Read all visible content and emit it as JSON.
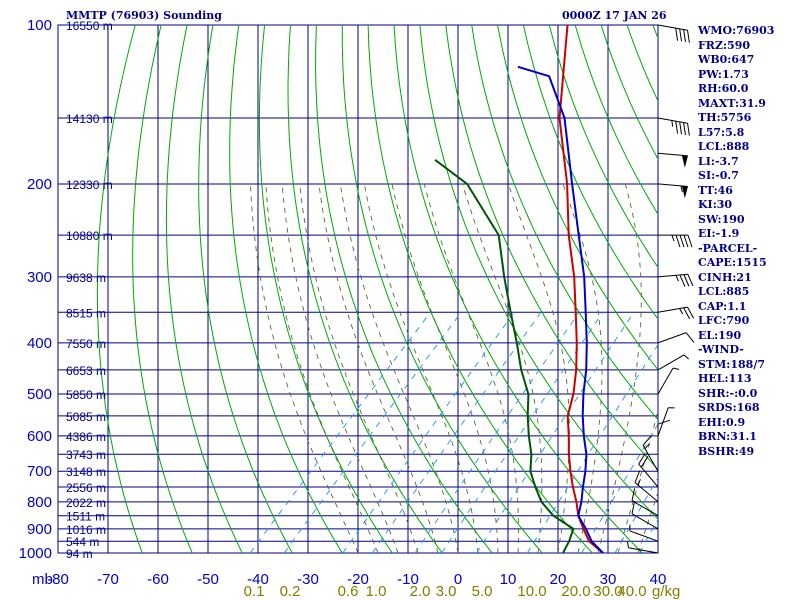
{
  "header": {
    "title": "MMTP (76903) Sounding",
    "datetime": "0000Z 17 JAN 26"
  },
  "index_panel": [
    "WMO:76903",
    "FRZ:590",
    "WB0:647",
    "PW:1.73",
    "RH:60.0",
    "MAXT:31.9",
    "TH:5756",
    "L57:5.8",
    "LCL:888",
    "LI:-3.7",
    "SI:-0.7",
    "TT:46",
    "KI:30",
    "SW:190",
    "EI:-1.9",
    "-PARCEL-",
    "CAPE:1515",
    "CINH:21",
    "LCL:885",
    "CAP:1.1",
    "LFC:790",
    "EL:190",
    "-WIND-",
    "STM:188/7",
    "HEL:113",
    "SHR:-:0.0",
    "SRDS:168",
    "EHI:0.9",
    "BRN:31.1",
    "BSHR:49"
  ],
  "colors": {
    "grid": "#00008b",
    "axis_text": "#0000cd",
    "dry_adiabat": "#00aa00",
    "moist_adiabat": "#556b2f",
    "mixing_ratio": "#1e90ff",
    "temperature": "#cc0000",
    "dewpoint": "#005500",
    "parcel": "#0000cc",
    "mix_label": "#808000"
  },
  "chart_data": {
    "type": "skew-t log-p sounding",
    "title": "MMTP (76903) Sounding",
    "pressure_range_mb": [
      1000,
      100
    ],
    "temperature_range_c": [
      -80,
      40
    ],
    "pressure_unit_label": "mb",
    "mixing_ratio_unit_label": "g/kg",
    "pressure_levels": [
      100,
      200,
      300,
      400,
      500,
      600,
      700,
      800,
      900,
      1000
    ],
    "temperature_ticks": [
      -80,
      -70,
      -60,
      -50,
      -40,
      -30,
      -20,
      -10,
      0,
      10,
      20,
      30,
      40
    ],
    "height_labels": [
      {
        "p": 100,
        "label": "16550 m"
      },
      {
        "p": 150,
        "label": "14130 m"
      },
      {
        "p": 200,
        "label": "12330 m"
      },
      {
        "p": 250,
        "label": "10880 m"
      },
      {
        "p": 300,
        "label": "9638 m"
      },
      {
        "p": 350,
        "label": "8515 m"
      },
      {
        "p": 400,
        "label": "7550 m"
      },
      {
        "p": 450,
        "label": "6653 m"
      },
      {
        "p": 500,
        "label": "5850 m"
      },
      {
        "p": 550,
        "label": "5085 m"
      },
      {
        "p": 600,
        "label": "4386 m"
      },
      {
        "p": 650,
        "label": "3743 m"
      },
      {
        "p": 700,
        "label": "3148 m"
      },
      {
        "p": 750,
        "label": "2556 m"
      },
      {
        "p": 800,
        "label": "2022 m"
      },
      {
        "p": 850,
        "label": "1511 m"
      },
      {
        "p": 900,
        "label": "1016 m"
      },
      {
        "p": 950,
        "label": "544 m"
      },
      {
        "p": 1000,
        "label": "94 m"
      }
    ],
    "mixing_ratio_labels": [
      "0.1",
      "0.2",
      "0.6",
      "1.0",
      "2.0",
      "3.0",
      "5.0",
      "10.0",
      "20.0",
      "30.0",
      "40.0"
    ],
    "mixing_ratio_values": [
      0.1,
      0.2,
      0.6,
      1.0,
      2.0,
      3.0,
      5.0,
      10.0,
      20.0,
      30.0,
      40.0
    ],
    "series": [
      {
        "name": "temperature",
        "points": [
          [
            1000,
            29
          ],
          [
            950,
            24
          ],
          [
            900,
            20.5
          ],
          [
            850,
            17
          ],
          [
            800,
            14
          ],
          [
            750,
            10.5
          ],
          [
            700,
            7
          ],
          [
            650,
            3.5
          ],
          [
            600,
            0
          ],
          [
            550,
            -4
          ],
          [
            500,
            -7
          ],
          [
            450,
            -11
          ],
          [
            400,
            -16
          ],
          [
            350,
            -22
          ],
          [
            300,
            -29
          ],
          [
            250,
            -38
          ],
          [
            200,
            -48
          ],
          [
            150,
            -62
          ],
          [
            100,
            -78
          ]
        ]
      },
      {
        "name": "dewpoint",
        "points": [
          [
            1000,
            21
          ],
          [
            950,
            20
          ],
          [
            900,
            18.5
          ],
          [
            850,
            12
          ],
          [
            800,
            7
          ],
          [
            750,
            3
          ],
          [
            700,
            -1
          ],
          [
            650,
            -4
          ],
          [
            600,
            -8
          ],
          [
            550,
            -12
          ],
          [
            500,
            -16
          ],
          [
            450,
            -22
          ],
          [
            400,
            -28
          ],
          [
            350,
            -35
          ],
          [
            300,
            -43
          ],
          [
            250,
            -52
          ],
          [
            200,
            -68
          ],
          [
            180,
            -79
          ]
        ]
      },
      {
        "name": "parcel",
        "points": [
          [
            1000,
            29
          ],
          [
            950,
            24.5
          ],
          [
            900,
            21
          ],
          [
            850,
            17
          ],
          [
            800,
            15
          ],
          [
            750,
            12.5
          ],
          [
            700,
            10
          ],
          [
            650,
            7
          ],
          [
            600,
            3
          ],
          [
            550,
            -1
          ],
          [
            500,
            -5
          ],
          [
            450,
            -9
          ],
          [
            400,
            -14
          ],
          [
            350,
            -20
          ],
          [
            300,
            -27
          ],
          [
            250,
            -36
          ],
          [
            200,
            -47
          ],
          [
            150,
            -61
          ],
          [
            125,
            -72
          ],
          [
            120,
            -80
          ]
        ]
      }
    ],
    "wind_barbs": [
      {
        "p": 100,
        "dir": 280,
        "spd": 40
      },
      {
        "p": 150,
        "dir": 280,
        "spd": 45
      },
      {
        "p": 175,
        "dir": 275,
        "spd": 50
      },
      {
        "p": 200,
        "dir": 275,
        "spd": 55
      },
      {
        "p": 250,
        "dir": 270,
        "spd": 45
      },
      {
        "p": 300,
        "dir": 265,
        "spd": 35
      },
      {
        "p": 350,
        "dir": 260,
        "spd": 25
      },
      {
        "p": 400,
        "dir": 250,
        "spd": 10
      },
      {
        "p": 450,
        "dir": 240,
        "spd": 5
      },
      {
        "p": 500,
        "dir": 210,
        "spd": 5
      },
      {
        "p": 600,
        "dir": 200,
        "spd": 5
      },
      {
        "p": 650,
        "dir": 180,
        "spd": 10
      },
      {
        "p": 700,
        "dir": 150,
        "spd": 15
      },
      {
        "p": 750,
        "dir": 140,
        "spd": 20
      },
      {
        "p": 800,
        "dir": 130,
        "spd": 15
      },
      {
        "p": 850,
        "dir": 120,
        "spd": 10
      },
      {
        "p": 900,
        "dir": 120,
        "spd": 10
      },
      {
        "p": 950,
        "dir": 110,
        "spd": 5
      },
      {
        "p": 1000,
        "dir": 100,
        "spd": 5
      }
    ]
  }
}
